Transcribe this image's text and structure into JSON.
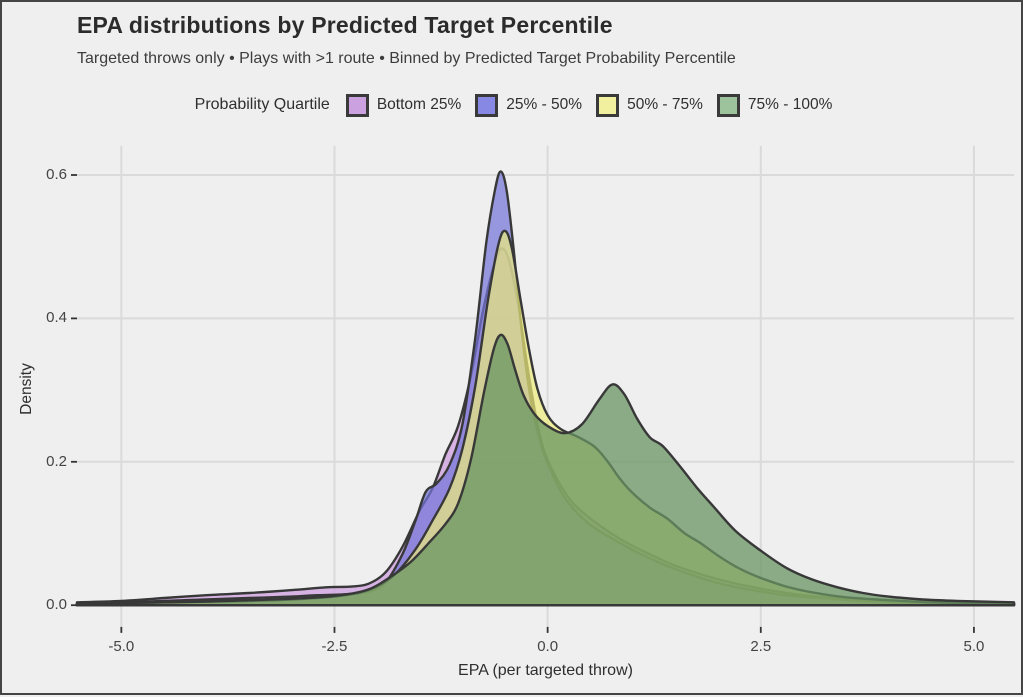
{
  "header": {
    "title": "EPA distributions by Predicted Target Percentile",
    "subtitle": "Targeted throws only • Plays with >1 route • Binned by Predicted Target Probability Percentile"
  },
  "legend": {
    "title": "Probability Quartile",
    "items": [
      {
        "label": "Bottom 25%",
        "color": "#CBA1E0"
      },
      {
        "label": "25% - 50%",
        "color": "#8787E4"
      },
      {
        "label": "50% - 75%",
        "color": "#F0F09E"
      },
      {
        "label": "75% - 100%",
        "color": "#9CC39C"
      }
    ]
  },
  "axes": {
    "x_title": "EPA (per targeted throw)",
    "y_title": "Density"
  },
  "colors": {
    "background": "#EFEFEF",
    "gridline": "#DADADA",
    "curve_outline": "#383838",
    "tick_mark": "#333333",
    "frame": "#454545"
  },
  "chart_data": {
    "type": "area",
    "subtype": "kernel-density",
    "title": "EPA distributions by Predicted Target Percentile",
    "subtitle": "Targeted throws only • Plays with >1 route • Binned by Predicted Target Probability Percentile",
    "xlabel": "EPA (per targeted throw)",
    "ylabel": "Density",
    "legend_title": "Probability Quartile",
    "legend_position": "top-center",
    "grid": "major-only",
    "xlim": [
      -5.52,
      5.47
    ],
    "ylim": [
      0,
      0.64
    ],
    "x_ticks": [
      -5.0,
      -2.5,
      0.0,
      2.5,
      5.0
    ],
    "x_tick_labels": [
      "-5.0",
      "-2.5",
      "0.0",
      "2.5",
      "5.0"
    ],
    "y_ticks": [
      0.0,
      0.2,
      0.4,
      0.6
    ],
    "y_tick_labels": [
      "0.0",
      "0.2",
      "0.4",
      "0.6"
    ],
    "series": [
      {
        "name": "Bottom 25%",
        "fill": "rgba(206,162,222,0.78)",
        "peak": {
          "x": -0.52,
          "density": 0.5
        },
        "points": [
          [
            -5.52,
            0.004
          ],
          [
            -5.0,
            0.006
          ],
          [
            -4.5,
            0.01
          ],
          [
            -4.0,
            0.014
          ],
          [
            -3.5,
            0.017
          ],
          [
            -3.0,
            0.021
          ],
          [
            -2.6,
            0.025
          ],
          [
            -2.3,
            0.026
          ],
          [
            -2.1,
            0.03
          ],
          [
            -1.9,
            0.046
          ],
          [
            -1.7,
            0.082
          ],
          [
            -1.5,
            0.132
          ],
          [
            -1.35,
            0.163
          ],
          [
            -1.2,
            0.21
          ],
          [
            -1.05,
            0.25
          ],
          [
            -0.9,
            0.32
          ],
          [
            -0.75,
            0.415
          ],
          [
            -0.6,
            0.485
          ],
          [
            -0.52,
            0.497
          ],
          [
            -0.44,
            0.475
          ],
          [
            -0.34,
            0.415
          ],
          [
            -0.24,
            0.335
          ],
          [
            -0.14,
            0.265
          ],
          [
            -0.04,
            0.215
          ],
          [
            0.1,
            0.178
          ],
          [
            0.3,
            0.142
          ],
          [
            0.6,
            0.112
          ],
          [
            0.9,
            0.089
          ],
          [
            1.2,
            0.071
          ],
          [
            1.5,
            0.055
          ],
          [
            1.8,
            0.043
          ],
          [
            2.1,
            0.033
          ],
          [
            2.5,
            0.023
          ],
          [
            3.0,
            0.014
          ],
          [
            3.5,
            0.009
          ],
          [
            4.0,
            0.006
          ],
          [
            4.5,
            0.004
          ],
          [
            5.0,
            0.003
          ],
          [
            5.47,
            0.003
          ]
        ]
      },
      {
        "name": "25% - 50%",
        "fill": "rgba(116,116,216,0.72)",
        "peak": {
          "x": -0.55,
          "density": 0.605
        },
        "points": [
          [
            -5.52,
            0.003
          ],
          [
            -5.0,
            0.004
          ],
          [
            -4.5,
            0.006
          ],
          [
            -4.0,
            0.008
          ],
          [
            -3.5,
            0.01
          ],
          [
            -3.0,
            0.012
          ],
          [
            -2.7,
            0.014
          ],
          [
            -2.4,
            0.015
          ],
          [
            -2.1,
            0.019
          ],
          [
            -1.9,
            0.032
          ],
          [
            -1.7,
            0.072
          ],
          [
            -1.55,
            0.118
          ],
          [
            -1.43,
            0.158
          ],
          [
            -1.3,
            0.17
          ],
          [
            -1.15,
            0.196
          ],
          [
            -1.0,
            0.252
          ],
          [
            -0.85,
            0.372
          ],
          [
            -0.72,
            0.505
          ],
          [
            -0.62,
            0.578
          ],
          [
            -0.55,
            0.605
          ],
          [
            -0.48,
            0.578
          ],
          [
            -0.4,
            0.498
          ],
          [
            -0.3,
            0.378
          ],
          [
            -0.2,
            0.288
          ],
          [
            -0.1,
            0.234
          ],
          [
            0.0,
            0.198
          ],
          [
            0.2,
            0.15
          ],
          [
            0.45,
            0.117
          ],
          [
            0.7,
            0.097
          ],
          [
            1.0,
            0.077
          ],
          [
            1.3,
            0.06
          ],
          [
            1.6,
            0.046
          ],
          [
            2.0,
            0.031
          ],
          [
            2.4,
            0.021
          ],
          [
            2.8,
            0.014
          ],
          [
            3.2,
            0.01
          ],
          [
            3.7,
            0.006
          ],
          [
            4.2,
            0.004
          ],
          [
            4.7,
            0.003
          ],
          [
            5.47,
            0.002
          ]
        ]
      },
      {
        "name": "50% - 75%",
        "fill": "rgba(237,237,122,0.70)",
        "peak": {
          "x": -0.5,
          "density": 0.522
        },
        "points": [
          [
            -5.52,
            0.002
          ],
          [
            -5.0,
            0.003
          ],
          [
            -4.5,
            0.004
          ],
          [
            -4.0,
            0.005
          ],
          [
            -3.5,
            0.006
          ],
          [
            -3.0,
            0.008
          ],
          [
            -2.5,
            0.012
          ],
          [
            -2.1,
            0.021
          ],
          [
            -1.8,
            0.042
          ],
          [
            -1.55,
            0.078
          ],
          [
            -1.35,
            0.118
          ],
          [
            -1.15,
            0.163
          ],
          [
            -1.0,
            0.218
          ],
          [
            -0.85,
            0.305
          ],
          [
            -0.7,
            0.425
          ],
          [
            -0.58,
            0.502
          ],
          [
            -0.5,
            0.522
          ],
          [
            -0.42,
            0.498
          ],
          [
            -0.32,
            0.428
          ],
          [
            -0.22,
            0.358
          ],
          [
            -0.12,
            0.302
          ],
          [
            0.0,
            0.265
          ],
          [
            0.15,
            0.246
          ],
          [
            0.35,
            0.235
          ],
          [
            0.55,
            0.221
          ],
          [
            0.7,
            0.201
          ],
          [
            0.85,
            0.176
          ],
          [
            1.0,
            0.156
          ],
          [
            1.2,
            0.136
          ],
          [
            1.4,
            0.121
          ],
          [
            1.6,
            0.101
          ],
          [
            1.8,
            0.086
          ],
          [
            2.0,
            0.069
          ],
          [
            2.25,
            0.051
          ],
          [
            2.5,
            0.038
          ],
          [
            2.8,
            0.026
          ],
          [
            3.1,
            0.018
          ],
          [
            3.5,
            0.011
          ],
          [
            4.0,
            0.007
          ],
          [
            4.5,
            0.004
          ],
          [
            5.0,
            0.003
          ],
          [
            5.47,
            0.002
          ]
        ]
      },
      {
        "name": "75% - 100%",
        "fill": "rgba(104,148,98,0.75)",
        "peak": {
          "x": -0.55,
          "density": 0.377
        },
        "second_peak": {
          "x": 0.76,
          "density": 0.308
        },
        "points": [
          [
            -5.52,
            0.002
          ],
          [
            -5.0,
            0.003
          ],
          [
            -4.5,
            0.004
          ],
          [
            -4.0,
            0.005
          ],
          [
            -3.5,
            0.007
          ],
          [
            -3.0,
            0.009
          ],
          [
            -2.5,
            0.013
          ],
          [
            -2.1,
            0.022
          ],
          [
            -1.8,
            0.043
          ],
          [
            -1.6,
            0.061
          ],
          [
            -1.4,
            0.086
          ],
          [
            -1.2,
            0.113
          ],
          [
            -1.05,
            0.142
          ],
          [
            -0.9,
            0.203
          ],
          [
            -0.75,
            0.295
          ],
          [
            -0.63,
            0.358
          ],
          [
            -0.55,
            0.377
          ],
          [
            -0.47,
            0.364
          ],
          [
            -0.38,
            0.328
          ],
          [
            -0.28,
            0.292
          ],
          [
            -0.15,
            0.266
          ],
          [
            0.0,
            0.25
          ],
          [
            0.2,
            0.24
          ],
          [
            0.4,
            0.252
          ],
          [
            0.6,
            0.286
          ],
          [
            0.76,
            0.308
          ],
          [
            0.9,
            0.294
          ],
          [
            1.05,
            0.26
          ],
          [
            1.2,
            0.234
          ],
          [
            1.35,
            0.222
          ],
          [
            1.55,
            0.194
          ],
          [
            1.75,
            0.164
          ],
          [
            1.95,
            0.137
          ],
          [
            2.2,
            0.104
          ],
          [
            2.5,
            0.076
          ],
          [
            2.8,
            0.052
          ],
          [
            3.1,
            0.036
          ],
          [
            3.4,
            0.025
          ],
          [
            3.7,
            0.017
          ],
          [
            4.0,
            0.012
          ],
          [
            4.4,
            0.008
          ],
          [
            4.8,
            0.006
          ],
          [
            5.47,
            0.004
          ]
        ]
      }
    ]
  }
}
